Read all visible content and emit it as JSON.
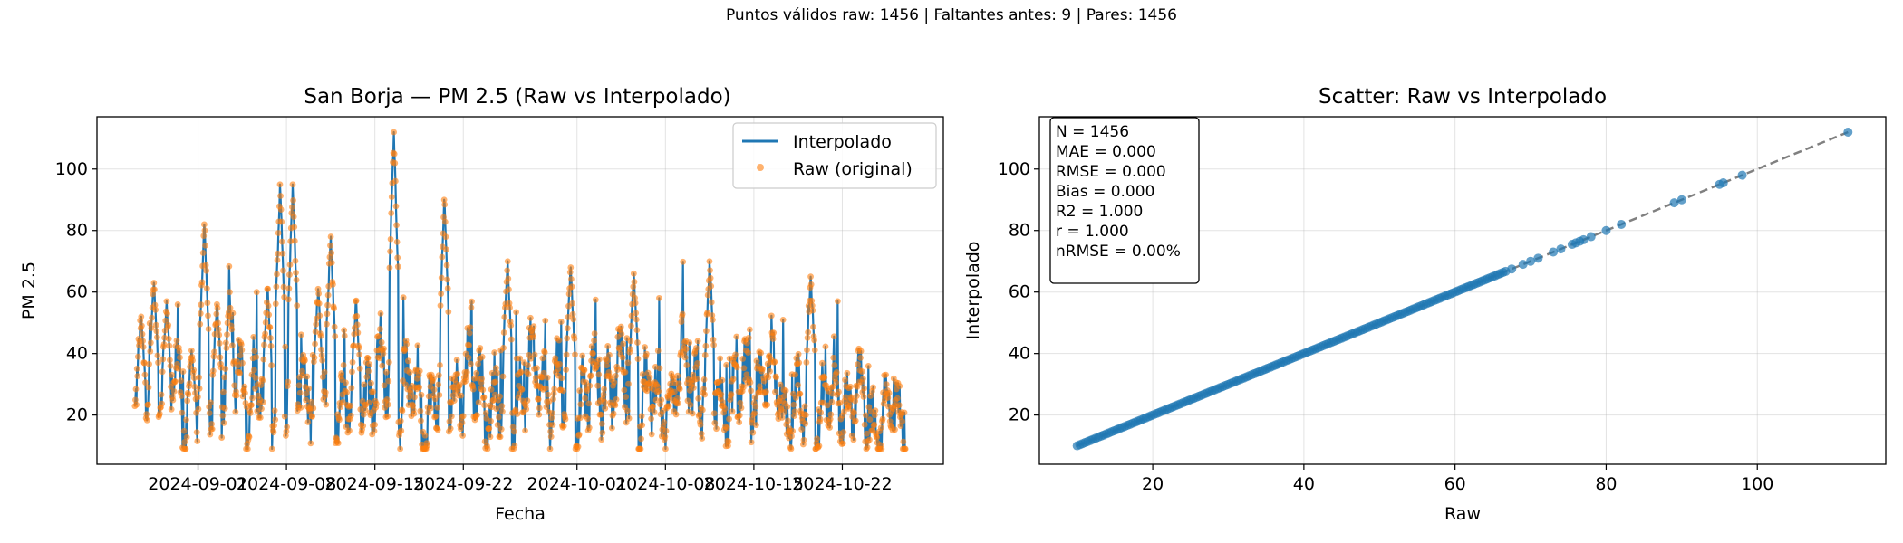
{
  "figure": {
    "suptitle": "Puntos válidos raw: 1456 | Faltantes antes: 9 | Pares: 1456"
  },
  "chart_data": [
    {
      "type": "line",
      "title": "San Borja — PM 2.5 (Raw vs Interpolado)",
      "xlabel": "Fecha",
      "ylabel": "PM 2.5",
      "x_start": "2024-08-27",
      "x_end": "2024-10-27",
      "xlim": [
        "2024-08-24",
        "2024-10-30"
      ],
      "ylim": [
        4,
        117
      ],
      "xticks": [
        "2024-09-01",
        "2024-09-08",
        "2024-09-15",
        "2024-09-22",
        "2024-10-01",
        "2024-10-08",
        "2024-10-15",
        "2024-10-22"
      ],
      "yticks": [
        20,
        40,
        60,
        80,
        100
      ],
      "grid": true,
      "legend_position": "top-right",
      "series": [
        {
          "name": "Interpolado",
          "kind": "line",
          "color": "#1f77b4"
        },
        {
          "name": "Raw (original)",
          "kind": "scatter",
          "color": "#ff7f0e"
        }
      ],
      "points_count": 1456,
      "peaks": [
        {
          "x": "2024-08-27",
          "y": 52
        },
        {
          "x": "2024-08-28",
          "y": 63
        },
        {
          "x": "2024-08-29",
          "y": 57
        },
        {
          "x": "2024-08-31",
          "y": 41
        },
        {
          "x": "2024-09-01",
          "y": 82
        },
        {
          "x": "2024-09-02",
          "y": 56
        },
        {
          "x": "2024-09-03",
          "y": 60
        },
        {
          "x": "2024-09-06",
          "y": 61
        },
        {
          "x": "2024-09-07",
          "y": 95
        },
        {
          "x": "2024-09-08",
          "y": 95
        },
        {
          "x": "2024-09-10",
          "y": 61
        },
        {
          "x": "2024-09-11",
          "y": 78
        },
        {
          "x": "2024-09-13",
          "y": 57
        },
        {
          "x": "2024-09-16",
          "y": 112
        },
        {
          "x": "2024-09-20",
          "y": 90
        },
        {
          "x": "2024-09-25",
          "y": 70
        },
        {
          "x": "2024-09-30",
          "y": 68
        },
        {
          "x": "2024-10-05",
          "y": 66
        },
        {
          "x": "2024-10-11",
          "y": 70
        },
        {
          "x": "2024-10-19",
          "y": 65
        },
        {
          "x": "2024-10-25",
          "y": 30
        }
      ]
    },
    {
      "type": "scatter",
      "title": "Scatter: Raw vs Interpolado",
      "xlabel": "Raw",
      "ylabel": "Interpolado",
      "xlim": [
        5,
        117
      ],
      "ylim": [
        4,
        117
      ],
      "xticks": [
        20,
        40,
        60,
        80,
        100
      ],
      "yticks": [
        20,
        40,
        60,
        80,
        100
      ],
      "grid": true,
      "color": "#1f77b4",
      "identity_line": {
        "from": 10,
        "to": 112,
        "color": "#808080",
        "style": "dashed"
      },
      "points_range": [
        10,
        112
      ],
      "sparse_points": [
        67.5,
        69,
        70,
        71,
        73,
        74,
        75.5,
        76,
        76.5,
        77,
        78,
        80,
        82,
        89,
        90,
        95,
        95.5,
        98,
        112
      ],
      "stats": [
        "N = 1456",
        "MAE = 0.000",
        "RMSE = 0.000",
        "Bias = 0.000",
        "R2 = 1.000",
        "r = 1.000",
        "nRMSE = 0.00%"
      ]
    }
  ]
}
